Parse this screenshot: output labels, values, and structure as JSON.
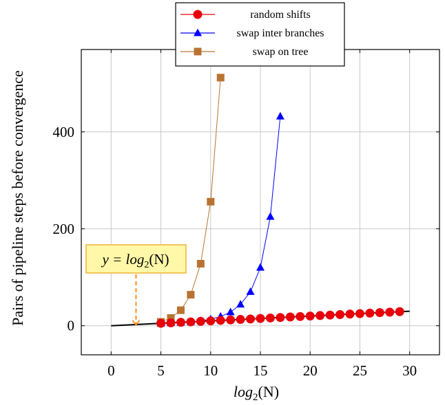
{
  "chart_data": {
    "type": "line",
    "xlabel": "log2(N)",
    "ylabel": "Pairs of pipeline steps before convergence",
    "xlim": [
      -3,
      33
    ],
    "ylim": [
      -60,
      570
    ],
    "x_ticks": [
      0,
      5,
      10,
      15,
      20,
      25,
      30
    ],
    "y_ticks": [
      0,
      200,
      400
    ],
    "grid": true,
    "legend_position": "top-center",
    "series": [
      {
        "name": "random shifts",
        "color": "#e8000b",
        "marker": "circle",
        "x": [
          5,
          6,
          7,
          8,
          9,
          10,
          11,
          12,
          13,
          14,
          15,
          16,
          17,
          18,
          19,
          20,
          21,
          22,
          23,
          24,
          25,
          26,
          27,
          28,
          29
        ],
        "y": [
          5,
          6,
          7,
          8,
          9,
          10,
          11,
          12,
          13,
          14,
          15,
          16,
          17,
          18,
          19,
          20,
          21,
          22,
          23,
          24,
          25,
          26,
          27,
          28,
          29
        ]
      },
      {
        "name": "swap inter branches",
        "color": "#0000ff",
        "marker": "triangle",
        "x": [
          5,
          6,
          7,
          8,
          9,
          10,
          11,
          12,
          13,
          14,
          15,
          16,
          17
        ],
        "y": [
          4.7,
          5.6,
          6.6,
          7.7,
          10,
          13.5,
          19,
          28,
          44,
          70,
          120,
          225,
          432
        ]
      },
      {
        "name": "swap on tree",
        "color": "#b87333",
        "marker": "square",
        "x": [
          5,
          6,
          7,
          8,
          9,
          10,
          11
        ],
        "y": [
          8,
          16,
          32,
          64,
          128,
          256,
          512
        ]
      },
      {
        "name": "",
        "color": "#000000",
        "marker": "none",
        "x": [
          0,
          30
        ],
        "y": [
          0,
          30
        ]
      }
    ],
    "annotations": [
      {
        "label": "y = log2(N)",
        "x": 2.5,
        "y": 0
      }
    ]
  },
  "labels": {
    "xlabel_main": "log",
    "xlabel_sub": "2",
    "xlabel_tail": "(N)",
    "ylabel": "Pairs of pipeline steps before convergence",
    "annot_prefix": "y = ",
    "annot_main": "log",
    "annot_sub": "2",
    "annot_tail": "(N)"
  }
}
